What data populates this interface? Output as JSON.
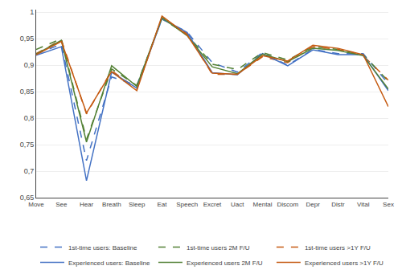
{
  "chart_data": {
    "type": "line",
    "categories": [
      "Move",
      "See",
      "Hear",
      "Breath",
      "Sleep",
      "Eat",
      "Speech",
      "Excret",
      "Uact",
      "Mental",
      "Discom",
      "Depr",
      "Distr",
      "Vital",
      "Sex"
    ],
    "series": [
      {
        "name": "1st-time users: Baseline",
        "color": "#4472C4",
        "line_style": "dashed",
        "values": [
          0.921,
          0.94,
          0.72,
          0.878,
          0.862,
          0.987,
          0.963,
          0.905,
          0.887,
          0.924,
          0.9,
          0.93,
          0.922,
          0.922,
          0.865
        ]
      },
      {
        "name": "1st-time users 2M F/U",
        "color": "#538135",
        "line_style": "dashed",
        "values": [
          0.93,
          0.95,
          0.76,
          0.893,
          0.862,
          0.988,
          0.958,
          0.902,
          0.892,
          0.924,
          0.91,
          0.935,
          0.93,
          0.92,
          0.87
        ]
      },
      {
        "name": "1st-time users >1Y F/U",
        "color": "#C55A11",
        "line_style": "dashed",
        "values": [
          0.922,
          0.948,
          0.808,
          0.89,
          0.855,
          0.99,
          0.96,
          0.883,
          0.883,
          0.916,
          0.905,
          0.935,
          0.93,
          0.918,
          0.872
        ]
      },
      {
        "name": "Experienced users: Baseline",
        "color": "#4472C4",
        "line_style": "solid",
        "values": [
          0.919,
          0.935,
          0.682,
          0.887,
          0.857,
          0.988,
          0.962,
          0.886,
          0.882,
          0.922,
          0.899,
          0.929,
          0.92,
          0.92,
          0.852
        ]
      },
      {
        "name": "Experienced users 2M F/U",
        "color": "#538135",
        "line_style": "solid",
        "values": [
          0.921,
          0.947,
          0.755,
          0.899,
          0.86,
          0.99,
          0.956,
          0.897,
          0.884,
          0.921,
          0.907,
          0.932,
          0.928,
          0.918,
          0.855
        ]
      },
      {
        "name": "Experienced users >1Y F/U",
        "color": "#C55A11",
        "line_style": "solid",
        "values": [
          0.92,
          0.945,
          0.81,
          0.888,
          0.852,
          0.993,
          0.957,
          0.885,
          0.883,
          0.918,
          0.908,
          0.938,
          0.932,
          0.92,
          0.822
        ]
      }
    ],
    "ylim": [
      0.65,
      1.005
    ],
    "yticks": [
      {
        "value": 0.65,
        "label": "0,65"
      },
      {
        "value": 0.7,
        "label": "0,7"
      },
      {
        "value": 0.75,
        "label": "0,75"
      },
      {
        "value": 0.8,
        "label": "0,8"
      },
      {
        "value": 0.85,
        "label": "0,85"
      },
      {
        "value": 0.9,
        "label": "0,9"
      },
      {
        "value": 0.95,
        "label": "0,95"
      },
      1
    ],
    "grid": true,
    "legend": "bottom"
  }
}
